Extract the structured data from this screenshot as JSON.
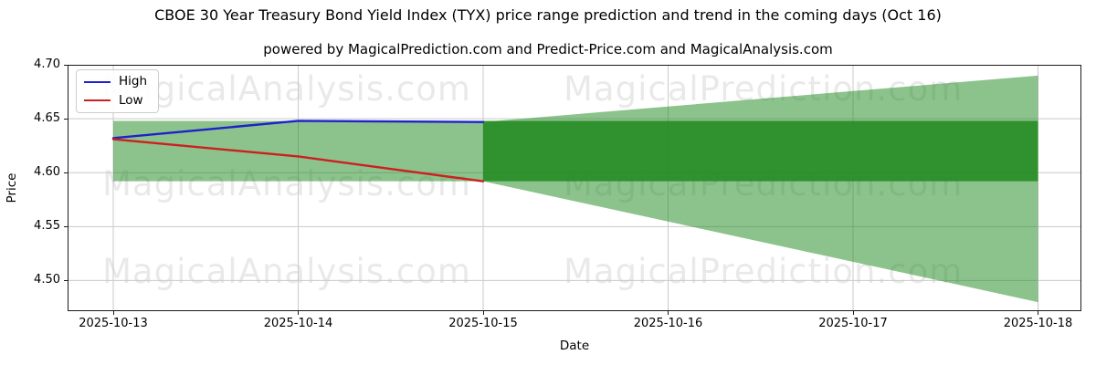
{
  "header": {
    "title": "CBOE 30 Year Treasury Bond Yield Index (TYX) price range prediction and trend in the coming days (Oct 16)",
    "subtitle": "powered by MagicalPrediction.com and Predict-Price.com and MagicalAnalysis.com"
  },
  "chart_data": {
    "type": "line",
    "title": "CBOE 30 Year Treasury Bond Yield Index (TYX) price range prediction and trend in the coming days (Oct 16)",
    "subtitle": "powered by MagicalPrediction.com and Predict-Price.com and MagicalAnalysis.com",
    "xlabel": "Date",
    "ylabel": "Price",
    "x": [
      "2025-10-13",
      "2025-10-14",
      "2025-10-15",
      "2025-10-16",
      "2025-10-17",
      "2025-10-18"
    ],
    "y_ticks": [
      4.7,
      4.65,
      4.6,
      4.55,
      4.5
    ],
    "y_tick_labels": [
      "4.70",
      "4.65",
      "4.60",
      "4.55",
      "4.50"
    ],
    "ylim": [
      4.4716,
      4.7
    ],
    "grid": true,
    "series": [
      {
        "name": "High",
        "color": "#2020cc",
        "x_idx": [
          0,
          1,
          2
        ],
        "values": [
          4.632,
          4.648,
          4.647
        ]
      },
      {
        "name": "Low",
        "color": "#cc2020",
        "x_idx": [
          0,
          1,
          2
        ],
        "values": [
          4.631,
          4.615,
          4.592
        ]
      }
    ],
    "bands": [
      {
        "name": "historical-range",
        "x_idx": [
          0,
          2
        ],
        "top": [
          4.648,
          4.648
        ],
        "bottom": [
          4.592,
          4.592
        ],
        "color": "rgba(34,139,34,0.52)"
      },
      {
        "name": "forecast-range-wide",
        "x_idx": [
          2,
          5
        ],
        "top": [
          4.647,
          4.69
        ],
        "bottom": [
          4.592,
          4.48
        ],
        "color": "rgba(34,139,34,0.52)"
      },
      {
        "name": "forecast-range-core",
        "x_idx": [
          2,
          5
        ],
        "top": [
          4.648,
          4.648
        ],
        "bottom": [
          4.592,
          4.592
        ],
        "color": "rgba(34,139,34,0.88)"
      }
    ],
    "legend": {
      "position": "upper-left",
      "entries": [
        {
          "label": "High",
          "color": "#2020cc"
        },
        {
          "label": "Low",
          "color": "#cc2020"
        }
      ]
    },
    "colors": {
      "grid": "#c9c9c9",
      "spine": "#1a1a1a",
      "watermark": "rgba(0,0,0,0.085)"
    }
  },
  "watermark": {
    "left_text": "MagicalAnalysis.com",
    "right_text": "MagicalPrediction.com",
    "rows": 3
  }
}
